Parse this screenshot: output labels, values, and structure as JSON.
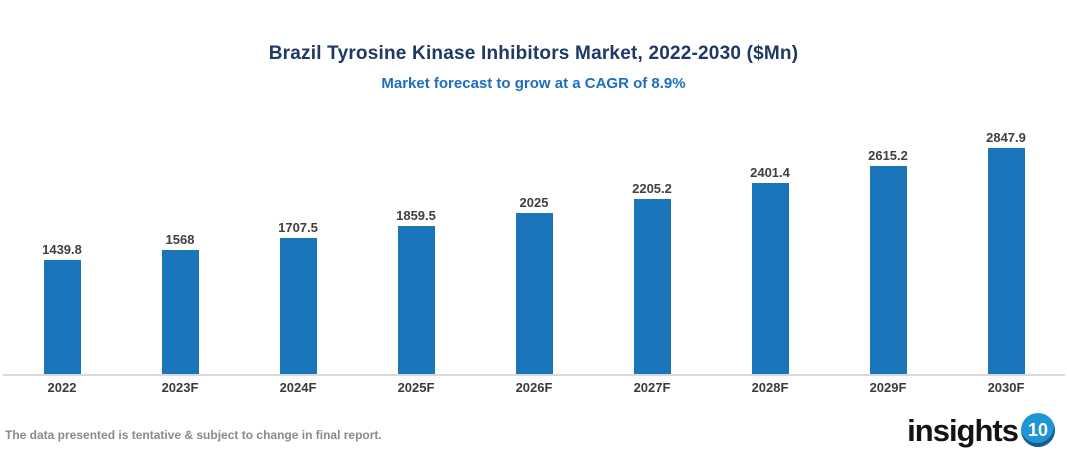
{
  "header": {
    "title": "Brazil Tyrosine Kinase Inhibitors Market, 2022-2030 ($Mn)",
    "subtitle": "Market forecast to grow at a CAGR of 8.9%"
  },
  "chart_data": {
    "type": "bar",
    "title": "Brazil Tyrosine Kinase Inhibitors Market, 2022-2030 ($Mn)",
    "subtitle": "Market forecast to grow at a CAGR of 8.9%",
    "categories": [
      "2022",
      "2023F",
      "2024F",
      "2025F",
      "2026F",
      "2027F",
      "2028F",
      "2029F",
      "2030F"
    ],
    "values": [
      1439.8,
      1568,
      1707.5,
      1859.5,
      2025,
      2205.2,
      2401.4,
      2615.2,
      2847.9
    ],
    "value_labels": [
      "1439.8",
      "1568",
      "1707.5",
      "1859.5",
      "2025",
      "2205.2",
      "2401.4",
      "2615.2",
      "2847.9"
    ],
    "xlabel": "",
    "ylabel": "",
    "ylim": [
      0,
      2847.9
    ],
    "grid": false,
    "legend": false,
    "bar_color": "#1B75BB"
  },
  "footer": {
    "disclaimer": "The data presented is tentative & subject to change in final report.",
    "logo_text": "insights",
    "logo_badge": "10"
  },
  "colors": {
    "title": "#1F3864",
    "subtitle": "#1B6EC2",
    "bar": "#1B75BB",
    "value_label": "#404040",
    "axis_line": "#D9D9D9",
    "x_label": "#3B3B3B",
    "disclaimer": "#8A8A8A",
    "logo_badge_bg": "#2095D3"
  }
}
